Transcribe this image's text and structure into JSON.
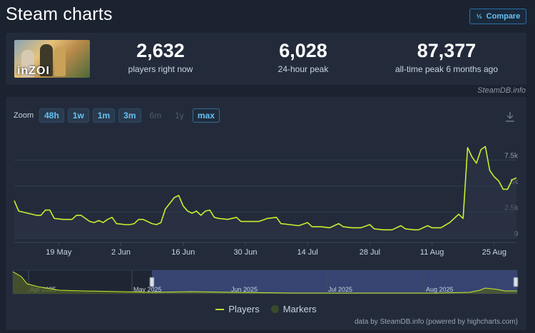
{
  "header": {
    "title": "Steam charts",
    "compare_label": "Compare"
  },
  "stats": {
    "game_logo_text": "inZOI",
    "current": {
      "value": "2,632",
      "label": "players right now"
    },
    "peak24": {
      "value": "6,028",
      "label": "24-hour peak"
    },
    "alltime": {
      "value": "87,377",
      "label": "all-time peak 6 months ago"
    },
    "credit": "SteamDB.info"
  },
  "zoom": {
    "label": "Zoom",
    "buttons": [
      {
        "label": "48h",
        "state": "enabled"
      },
      {
        "label": "1w",
        "state": "enabled"
      },
      {
        "label": "1m",
        "state": "enabled"
      },
      {
        "label": "3m",
        "state": "enabled"
      },
      {
        "label": "6m",
        "state": "disabled"
      },
      {
        "label": "1y",
        "state": "disabled"
      },
      {
        "label": "max",
        "state": "active"
      }
    ]
  },
  "colors": {
    "line": "#c8ef2e",
    "grid": "#323c4c",
    "navigator_mask": "#3c4a7e"
  },
  "chart_data": {
    "type": "line",
    "ylim": [
      0,
      10000
    ],
    "yticks": [
      0,
      2500,
      5000,
      7500
    ],
    "ytick_labels": [
      "0",
      "2.5k",
      "5k",
      "7.5k"
    ],
    "x_start": "2025-05-09",
    "x_end": "2025-08-30",
    "xticks": [
      {
        "date": "2025-05-19",
        "label": "19 May"
      },
      {
        "date": "2025-06-02",
        "label": "2 Jun"
      },
      {
        "date": "2025-06-16",
        "label": "16 Jun"
      },
      {
        "date": "2025-06-30",
        "label": "30 Jun"
      },
      {
        "date": "2025-07-14",
        "label": "14 Jul"
      },
      {
        "date": "2025-07-28",
        "label": "28 Jul"
      },
      {
        "date": "2025-08-11",
        "label": "11 Aug"
      },
      {
        "date": "2025-08-25",
        "label": "25 Aug"
      }
    ],
    "series": [
      {
        "name": "Players",
        "points": [
          [
            "2025-05-09",
            3600
          ],
          [
            "2025-05-10",
            2600
          ],
          [
            "2025-05-12",
            2400
          ],
          [
            "2025-05-14",
            2200
          ],
          [
            "2025-05-15",
            2200
          ],
          [
            "2025-05-16",
            2700
          ],
          [
            "2025-05-17",
            2700
          ],
          [
            "2025-05-18",
            1900
          ],
          [
            "2025-05-20",
            1800
          ],
          [
            "2025-05-22",
            1800
          ],
          [
            "2025-05-23",
            2200
          ],
          [
            "2025-05-24",
            2200
          ],
          [
            "2025-05-26",
            1600
          ],
          [
            "2025-05-27",
            1500
          ],
          [
            "2025-05-28",
            1700
          ],
          [
            "2025-05-29",
            1500
          ],
          [
            "2025-05-30",
            1800
          ],
          [
            "2025-05-31",
            2000
          ],
          [
            "2025-06-01",
            1400
          ],
          [
            "2025-06-03",
            1300
          ],
          [
            "2025-06-04",
            1300
          ],
          [
            "2025-06-05",
            1400
          ],
          [
            "2025-06-06",
            1800
          ],
          [
            "2025-06-07",
            1800
          ],
          [
            "2025-06-09",
            1400
          ],
          [
            "2025-06-10",
            1300
          ],
          [
            "2025-06-11",
            1500
          ],
          [
            "2025-06-12",
            2800
          ],
          [
            "2025-06-14",
            3900
          ],
          [
            "2025-06-15",
            4100
          ],
          [
            "2025-06-16",
            3100
          ],
          [
            "2025-06-17",
            2600
          ],
          [
            "2025-06-18",
            2400
          ],
          [
            "2025-06-19",
            2600
          ],
          [
            "2025-06-20",
            2200
          ],
          [
            "2025-06-21",
            2600
          ],
          [
            "2025-06-22",
            2700
          ],
          [
            "2025-06-23",
            2000
          ],
          [
            "2025-06-24",
            1900
          ],
          [
            "2025-06-26",
            1800
          ],
          [
            "2025-06-28",
            2000
          ],
          [
            "2025-06-29",
            1600
          ],
          [
            "2025-07-01",
            1600
          ],
          [
            "2025-07-03",
            1600
          ],
          [
            "2025-07-05",
            1900
          ],
          [
            "2025-07-07",
            2000
          ],
          [
            "2025-07-08",
            1400
          ],
          [
            "2025-07-10",
            1300
          ],
          [
            "2025-07-12",
            1200
          ],
          [
            "2025-07-14",
            1500
          ],
          [
            "2025-07-15",
            1100
          ],
          [
            "2025-07-17",
            1100
          ],
          [
            "2025-07-19",
            1000
          ],
          [
            "2025-07-21",
            1400
          ],
          [
            "2025-07-22",
            1100
          ],
          [
            "2025-07-24",
            1000
          ],
          [
            "2025-07-26",
            1000
          ],
          [
            "2025-07-28",
            1300
          ],
          [
            "2025-07-29",
            900
          ],
          [
            "2025-07-31",
            800
          ],
          [
            "2025-08-02",
            800
          ],
          [
            "2025-08-04",
            1200
          ],
          [
            "2025-08-05",
            900
          ],
          [
            "2025-08-07",
            800
          ],
          [
            "2025-08-08",
            800
          ],
          [
            "2025-08-10",
            1200
          ],
          [
            "2025-08-11",
            1000
          ],
          [
            "2025-08-13",
            1000
          ],
          [
            "2025-08-15",
            1500
          ],
          [
            "2025-08-17",
            2300
          ],
          [
            "2025-08-18",
            1900
          ],
          [
            "2025-08-19",
            8700
          ],
          [
            "2025-08-20",
            7800
          ],
          [
            "2025-08-21",
            7200
          ],
          [
            "2025-08-22",
            8500
          ],
          [
            "2025-08-23",
            8800
          ],
          [
            "2025-08-24",
            6500
          ],
          [
            "2025-08-25",
            5900
          ],
          [
            "2025-08-26",
            5500
          ],
          [
            "2025-08-27",
            4700
          ],
          [
            "2025-08-28",
            4700
          ],
          [
            "2025-08-29",
            5600
          ],
          [
            "2025-08-30",
            5800
          ]
        ]
      }
    ],
    "navigator": {
      "labels": [
        "Apr 2025",
        "May 2025",
        "Jun 2025",
        "Jul 2025",
        "Aug 2025"
      ]
    },
    "legend": [
      {
        "name": "Players",
        "type": "line"
      },
      {
        "name": "Markers",
        "type": "dot"
      }
    ],
    "credit": "data by SteamDB.info (powered by highcharts.com)"
  }
}
